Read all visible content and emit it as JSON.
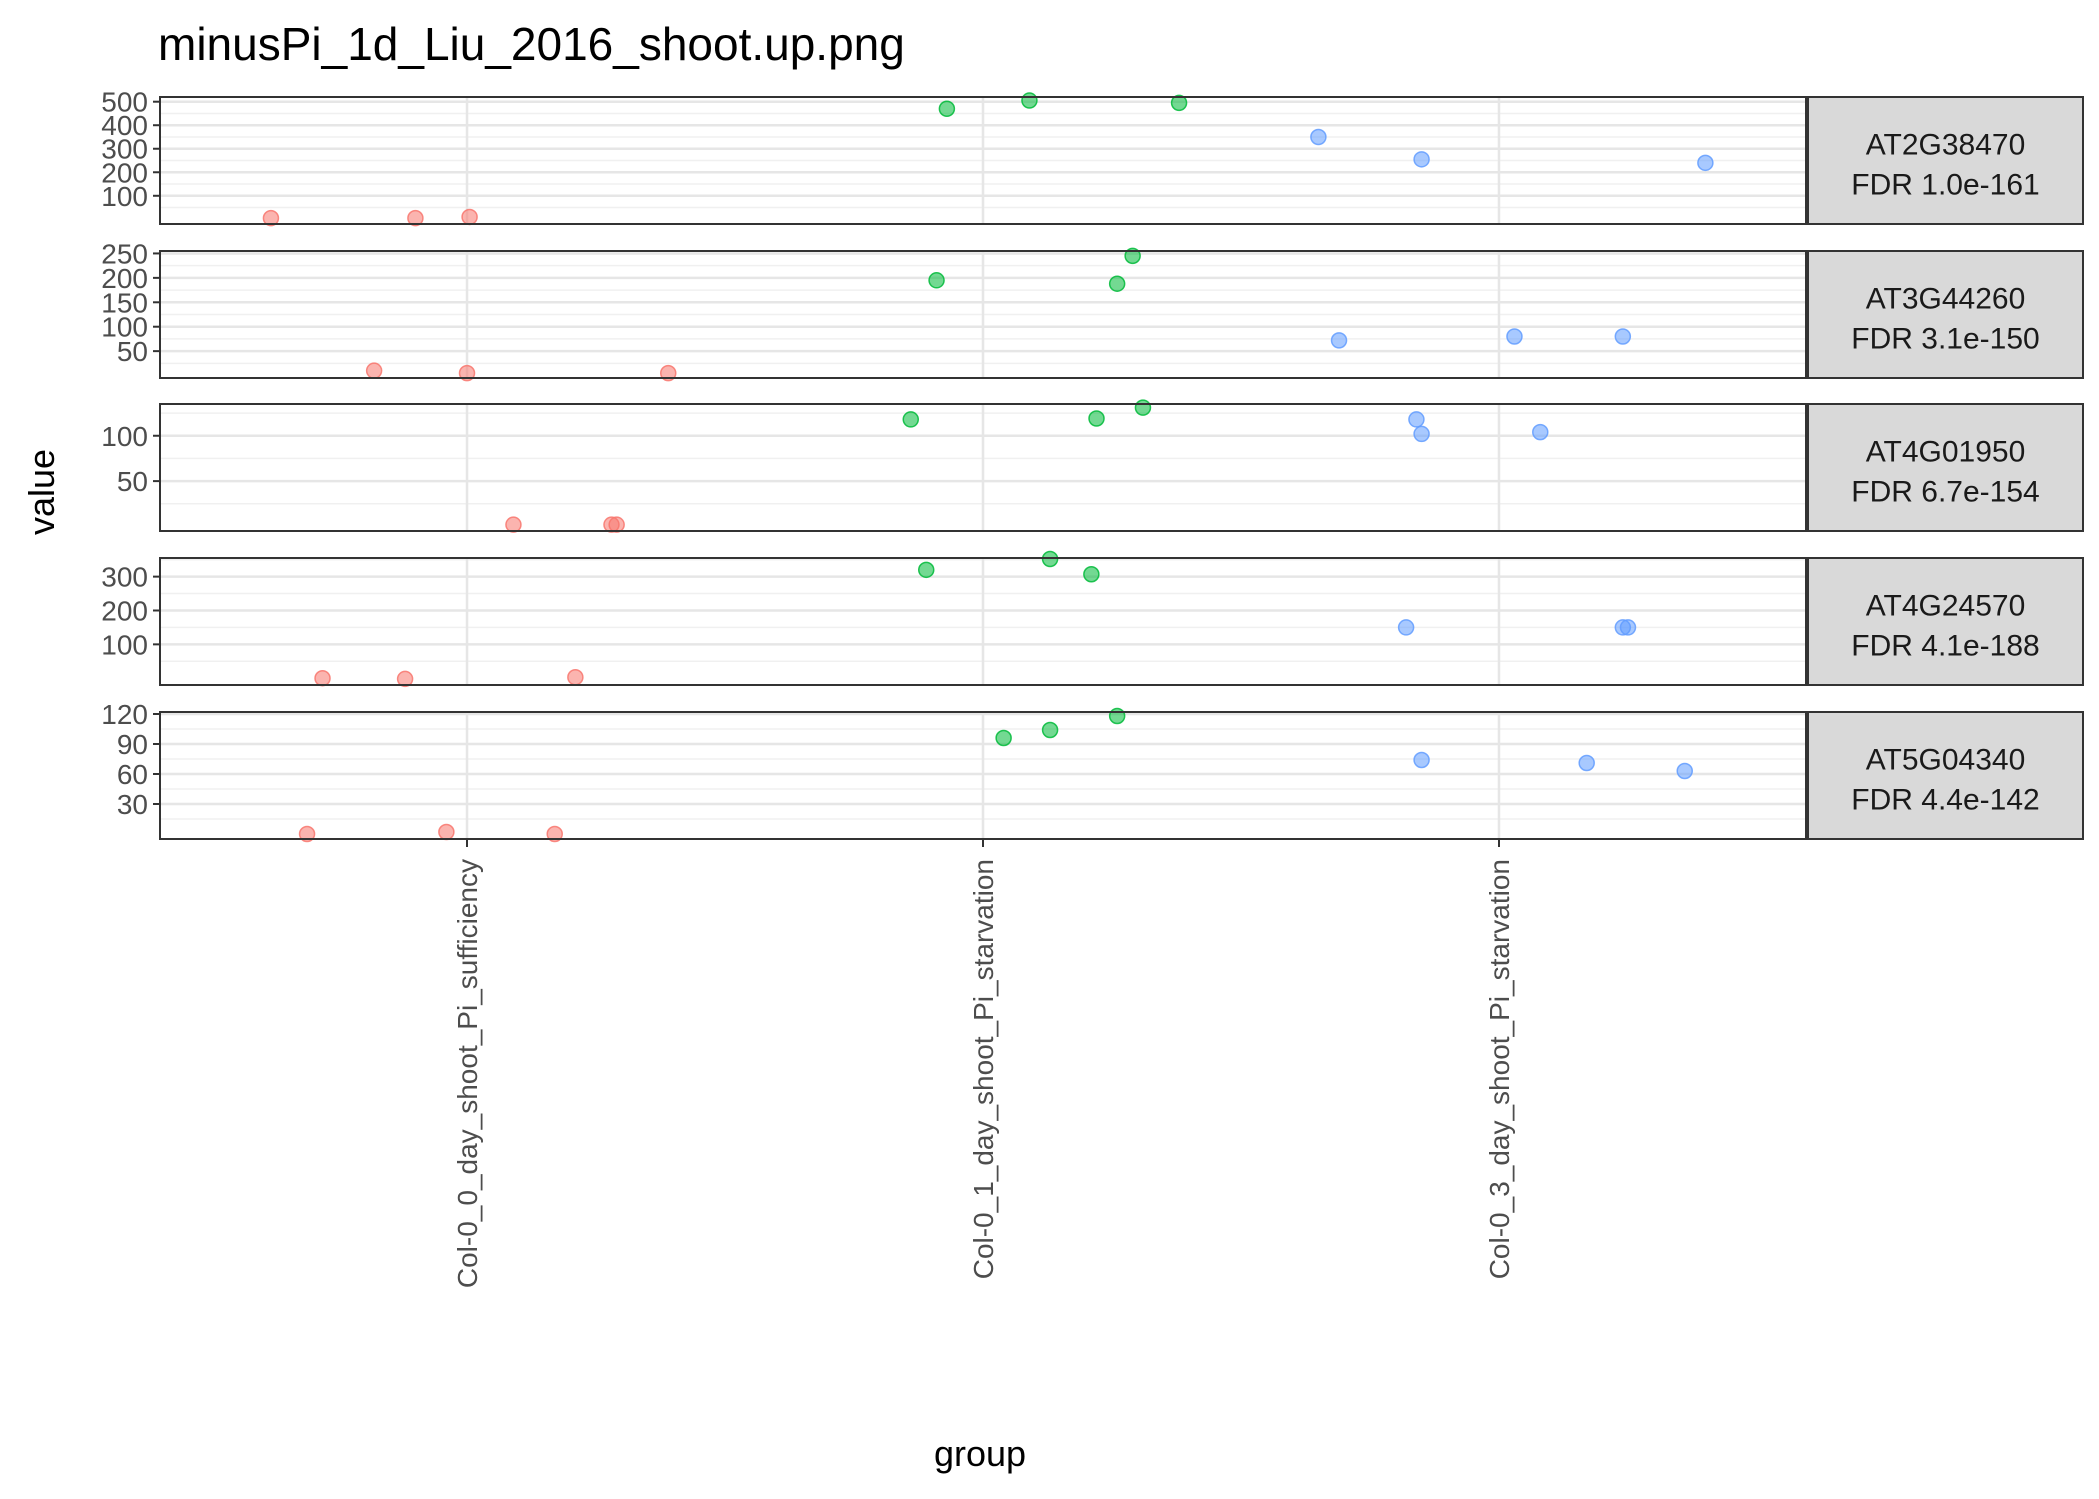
{
  "chart_data": {
    "type": "scatter",
    "title": "minusPi_1d_Liu_2016_shoot.up.png",
    "xlabel": "group",
    "ylabel": "value",
    "categories": [
      "Col-0_0_day_shoot_Pi_sufficiency",
      "Col-0_1_day_shoot_Pi_starvation",
      "Col-0_3_day_shoot_Pi_starvation"
    ],
    "colors": [
      "#F8766D",
      "#00BA38",
      "#619CFF"
    ],
    "grid": true,
    "legend": "none",
    "facets": [
      {
        "gene": "AT2G38470",
        "fdr": "FDR 1.0e-161",
        "ylim": [
          -20,
          520
        ],
        "yticks": [
          100,
          200,
          300,
          400,
          500
        ],
        "points": [
          {
            "group": 0,
            "x": 0.62,
            "y": 5
          },
          {
            "group": 0,
            "x": 0.9,
            "y": 5
          },
          {
            "group": 0,
            "x": 1.005,
            "y": 10
          },
          {
            "group": 1,
            "x": 1.93,
            "y": 470
          },
          {
            "group": 1,
            "x": 2.09,
            "y": 505
          },
          {
            "group": 1,
            "x": 2.38,
            "y": 495
          },
          {
            "group": 2,
            "x": 2.65,
            "y": 350
          },
          {
            "group": 2,
            "x": 2.85,
            "y": 255
          },
          {
            "group": 2,
            "x": 3.4,
            "y": 240
          }
        ]
      },
      {
        "gene": "AT3G44260",
        "fdr": "FDR 3.1e-150",
        "ylim": [
          -5,
          255
        ],
        "yticks": [
          50,
          100,
          150,
          200,
          250
        ],
        "points": [
          {
            "group": 0,
            "x": 0.82,
            "y": 10
          },
          {
            "group": 0,
            "x": 1.0,
            "y": 5
          },
          {
            "group": 0,
            "x": 1.39,
            "y": 5
          },
          {
            "group": 1,
            "x": 1.91,
            "y": 195
          },
          {
            "group": 1,
            "x": 2.26,
            "y": 188
          },
          {
            "group": 1,
            "x": 2.29,
            "y": 245
          },
          {
            "group": 2,
            "x": 2.69,
            "y": 72
          },
          {
            "group": 2,
            "x": 3.03,
            "y": 80
          },
          {
            "group": 2,
            "x": 3.24,
            "y": 80
          }
        ]
      },
      {
        "gene": "AT4G01950",
        "fdr": "FDR 6.7e-154",
        "ylim": [
          -5,
          135
        ],
        "yticks": [
          50,
          100
        ],
        "points": [
          {
            "group": 0,
            "x": 1.09,
            "y": 2
          },
          {
            "group": 0,
            "x": 1.28,
            "y": 2
          },
          {
            "group": 0,
            "x": 1.29,
            "y": 2
          },
          {
            "group": 1,
            "x": 1.86,
            "y": 118
          },
          {
            "group": 1,
            "x": 2.22,
            "y": 119
          },
          {
            "group": 1,
            "x": 2.31,
            "y": 131
          },
          {
            "group": 2,
            "x": 2.84,
            "y": 118
          },
          {
            "group": 2,
            "x": 2.85,
            "y": 102
          },
          {
            "group": 2,
            "x": 3.08,
            "y": 104
          }
        ]
      },
      {
        "gene": "AT4G24570",
        "fdr": "FDR 4.1e-188",
        "ylim": [
          -20,
          355
        ],
        "yticks": [
          100,
          200,
          300
        ],
        "points": [
          {
            "group": 0,
            "x": 0.72,
            "y": 0
          },
          {
            "group": 0,
            "x": 0.88,
            "y": -2
          },
          {
            "group": 0,
            "x": 1.21,
            "y": 3
          },
          {
            "group": 1,
            "x": 1.89,
            "y": 320
          },
          {
            "group": 1,
            "x": 2.13,
            "y": 352
          },
          {
            "group": 1,
            "x": 2.21,
            "y": 307
          },
          {
            "group": 2,
            "x": 2.82,
            "y": 150
          },
          {
            "group": 2,
            "x": 3.24,
            "y": 150
          },
          {
            "group": 2,
            "x": 3.25,
            "y": 150
          }
        ]
      },
      {
        "gene": "AT5G04340",
        "fdr": "FDR 4.4e-142",
        "ylim": [
          -5,
          122
        ],
        "yticks": [
          30,
          60,
          90,
          120
        ],
        "points": [
          {
            "group": 0,
            "x": 0.69,
            "y": 0
          },
          {
            "group": 0,
            "x": 0.96,
            "y": 2
          },
          {
            "group": 0,
            "x": 1.17,
            "y": 0
          },
          {
            "group": 1,
            "x": 2.04,
            "y": 96
          },
          {
            "group": 1,
            "x": 2.13,
            "y": 104
          },
          {
            "group": 1,
            "x": 2.26,
            "y": 118
          },
          {
            "group": 2,
            "x": 2.85,
            "y": 74
          },
          {
            "group": 2,
            "x": 3.17,
            "y": 71
          },
          {
            "group": 2,
            "x": 3.36,
            "y": 63
          }
        ]
      }
    ]
  }
}
